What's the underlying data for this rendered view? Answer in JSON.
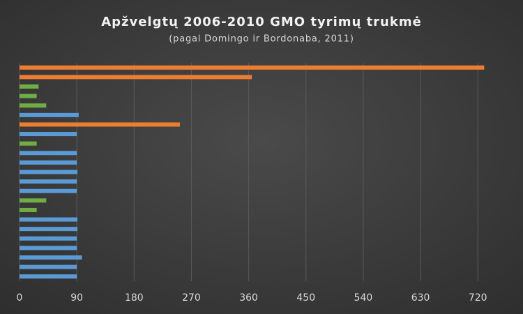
{
  "chart_data": {
    "type": "bar",
    "orientation": "horizontal",
    "title": "Apžvelgtų 2006-2010 GMO tyrimų trukmė",
    "subtitle": "(pagal Domingo ir Bordonaba, 2011)",
    "categories": [
      null,
      null,
      null,
      null,
      null,
      null,
      null,
      null,
      null,
      null,
      null,
      null,
      null,
      null,
      null,
      null,
      null,
      null,
      null,
      null,
      null,
      null,
      null
    ],
    "values": [
      730,
      365,
      30,
      27,
      42,
      93,
      252,
      90,
      27,
      90,
      90,
      91,
      90,
      90,
      42,
      27,
      91,
      91,
      90,
      90,
      98,
      90,
      90
    ],
    "colors": [
      "#ed7d31",
      "#ed7d31",
      "#70ad47",
      "#70ad47",
      "#70ad47",
      "#5b9bd5",
      "#ed7d31",
      "#5b9bd5",
      "#70ad47",
      "#5b9bd5",
      "#5b9bd5",
      "#5b9bd5",
      "#5b9bd5",
      "#5b9bd5",
      "#70ad47",
      "#70ad47",
      "#5b9bd5",
      "#5b9bd5",
      "#5b9bd5",
      "#5b9bd5",
      "#5b9bd5",
      "#5b9bd5",
      "#5b9bd5"
    ],
    "xlim": [
      0,
      780
    ],
    "xticks": [
      0,
      90,
      180,
      270,
      360,
      450,
      540,
      630,
      720
    ],
    "grid": true
  }
}
